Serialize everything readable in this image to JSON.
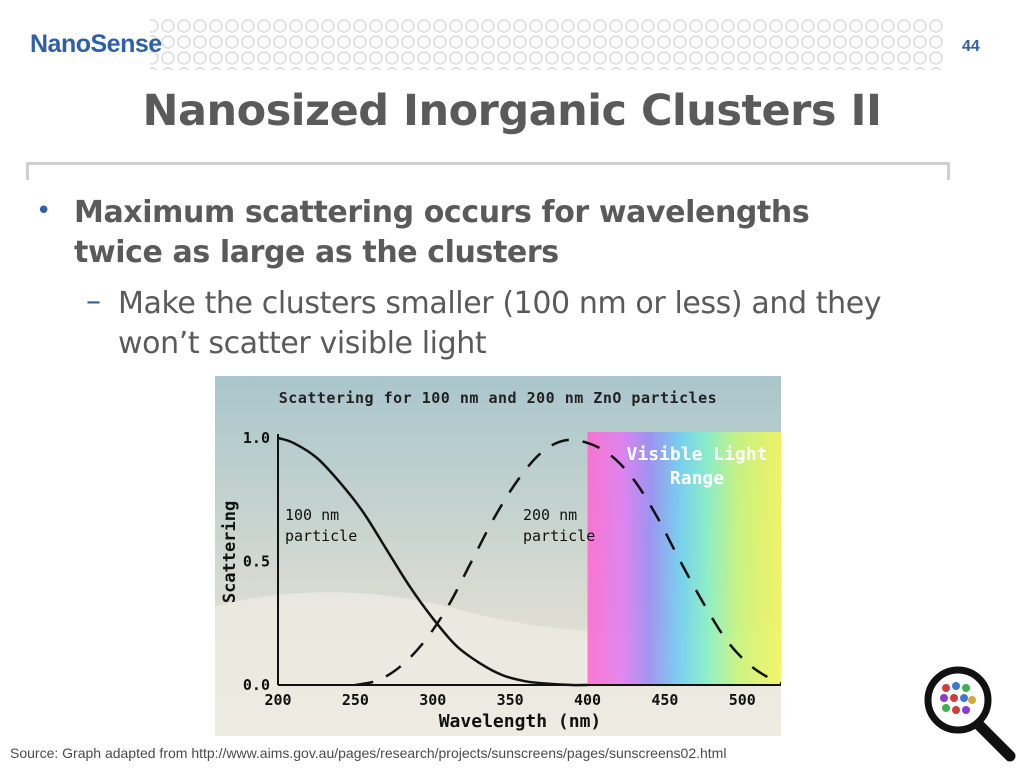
{
  "header": {
    "logo_text": "NanoSense",
    "page_number": "44"
  },
  "title": "Nanosized Inorganic Clusters II",
  "bullets": [
    {
      "text": "Maximum scattering occurs for wavelengths twice as large as the clusters",
      "sub": "Make the clusters smaller (100 nm or less) and they won’t scatter visible light"
    }
  ],
  "chart_data": {
    "type": "line",
    "title": "Scattering for 100 nm and 200 nm ZnO particles",
    "xlabel": "Wavelength (nm)",
    "ylabel": "Scattering",
    "xlim": [
      200,
      525
    ],
    "ylim": [
      0,
      1.0
    ],
    "x_ticks": [
      "200",
      "250",
      "300",
      "350",
      "400",
      "450",
      "500"
    ],
    "y_ticks": [
      "1.0",
      "0.5",
      "0.0"
    ],
    "series": [
      {
        "label": "100 nm particle",
        "style": "solid",
        "x": [
          200,
          210,
          225,
          240,
          255,
          270,
          285,
          300,
          315,
          330,
          345,
          360,
          375,
          390,
          400
        ],
        "y": [
          1.0,
          0.98,
          0.92,
          0.82,
          0.7,
          0.55,
          0.4,
          0.27,
          0.16,
          0.09,
          0.04,
          0.015,
          0.005,
          0.0,
          0.0
        ]
      },
      {
        "label": "200 nm particle",
        "style": "dashed",
        "x": [
          250,
          265,
          280,
          295,
          310,
          325,
          340,
          355,
          370,
          385,
          400,
          415,
          430,
          445,
          460,
          475,
          490,
          505,
          520,
          530
        ],
        "y": [
          0.0,
          0.02,
          0.08,
          0.18,
          0.32,
          0.5,
          0.68,
          0.83,
          0.94,
          0.99,
          0.98,
          0.93,
          0.83,
          0.68,
          0.5,
          0.33,
          0.18,
          0.08,
          0.02,
          0.0
        ]
      }
    ],
    "annotations": [
      {
        "text": "Visible Light Range",
        "region_x": [
          400,
          530
        ]
      }
    ],
    "grid": false,
    "legend": "inline labels"
  },
  "source_text": "Source: Graph adapted from http://www.aims.gov.au/pages/research/projects/sunscreens/pages/sunscreens02.html",
  "colors": {
    "brand_blue": "#2f5fa8",
    "title_gray": "#5a5a5a"
  }
}
